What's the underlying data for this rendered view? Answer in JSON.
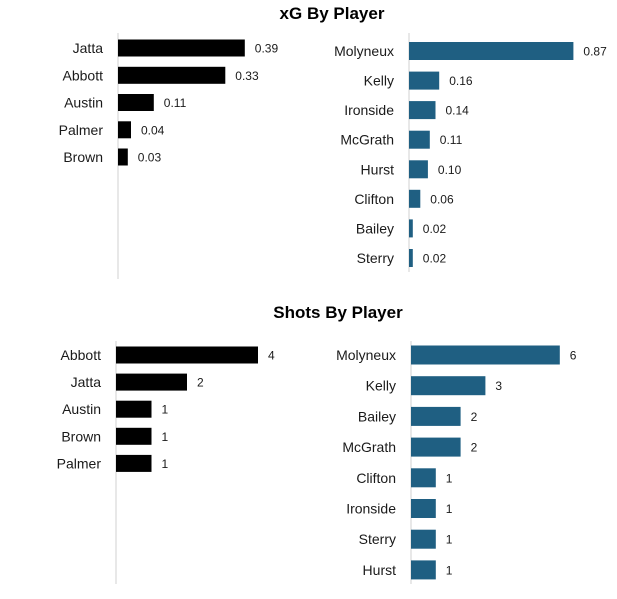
{
  "chart_data": [
    {
      "type": "bar",
      "title": "xG By Player",
      "panels": [
        {
          "orientation": "horizontal",
          "color": "#000000",
          "categories": [
            "Jatta",
            "Abbott",
            "Austin",
            "Palmer",
            "Brown"
          ],
          "values": [
            0.39,
            0.33,
            0.11,
            0.04,
            0.03
          ],
          "labels": [
            "0.39",
            "0.33",
            "0.11",
            "0.04",
            "0.03"
          ]
        },
        {
          "orientation": "horizontal",
          "color": "#1f5f82",
          "categories": [
            "Molyneux",
            "Kelly",
            "Ironside",
            "McGrath",
            "Hurst",
            "Clifton",
            "Bailey",
            "Sterry"
          ],
          "values": [
            0.87,
            0.16,
            0.14,
            0.11,
            0.1,
            0.06,
            0.02,
            0.02
          ],
          "labels": [
            "0.87",
            "0.16",
            "0.14",
            "0.11",
            "0.10",
            "0.06",
            "0.02",
            "0.02"
          ]
        }
      ]
    },
    {
      "type": "bar",
      "title": "Shots By Player",
      "panels": [
        {
          "orientation": "horizontal",
          "color": "#000000",
          "categories": [
            "Abbott",
            "Jatta",
            "Austin",
            "Brown",
            "Palmer"
          ],
          "values": [
            4,
            2,
            1,
            1,
            1
          ],
          "labels": [
            "4",
            "2",
            "1",
            "1",
            "1"
          ]
        },
        {
          "orientation": "horizontal",
          "color": "#1f5f82",
          "categories": [
            "Molyneux",
            "Kelly",
            "Bailey",
            "McGrath",
            "Clifton",
            "Ironside",
            "Sterry",
            "Hurst"
          ],
          "values": [
            6,
            3,
            2,
            2,
            1,
            1,
            1,
            1
          ],
          "labels": [
            "6",
            "3",
            "2",
            "2",
            "1",
            "1",
            "1",
            "1"
          ]
        }
      ]
    }
  ]
}
